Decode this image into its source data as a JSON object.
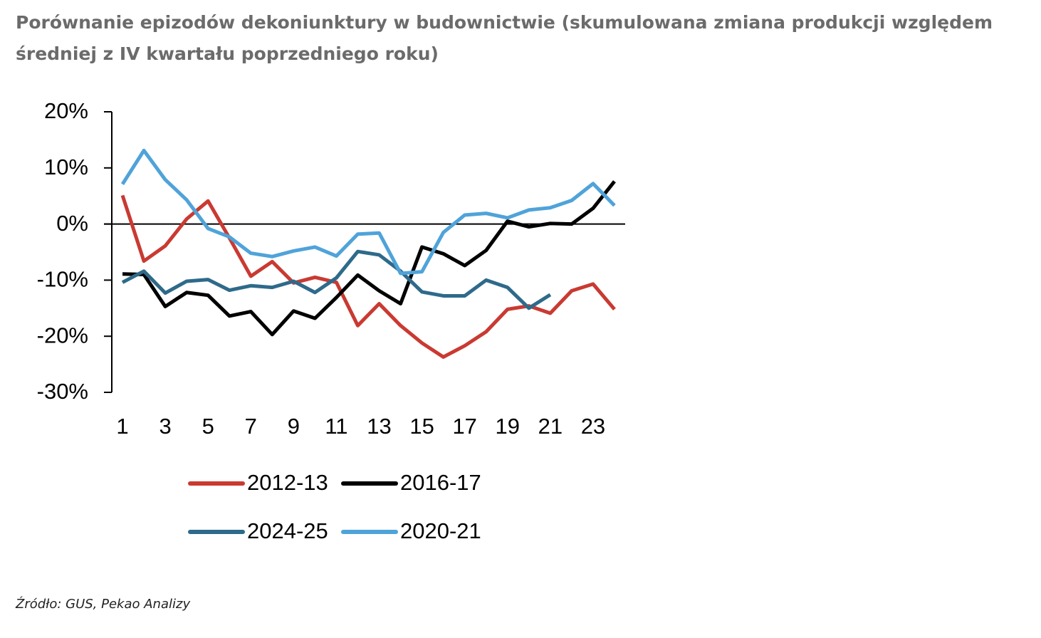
{
  "chart_data": {
    "type": "line",
    "title": "Porównanie epizodów dekoniunktury w budownictwie (skumulowana zmiana produkcji względem średniej z IV kwartału poprzedniego roku)",
    "source": "Źródło: GUS, Pekao Analizy",
    "x": [
      1,
      2,
      3,
      4,
      5,
      6,
      7,
      8,
      9,
      10,
      11,
      12,
      13,
      14,
      15,
      16,
      17,
      18,
      19,
      20,
      21,
      22,
      23,
      24
    ],
    "xlim": [
      0.5,
      24.5
    ],
    "xticks": [
      1,
      3,
      5,
      7,
      9,
      11,
      13,
      15,
      17,
      19,
      21,
      23
    ],
    "ylim": [
      -30,
      20
    ],
    "yticks": [
      {
        "value": 20,
        "label": "20%"
      },
      {
        "value": 10,
        "label": "10%"
      },
      {
        "value": 0,
        "label": "0%"
      },
      {
        "value": -10,
        "label": "-10%"
      },
      {
        "value": -20,
        "label": "-20%"
      },
      {
        "value": -30,
        "label": "-30%"
      }
    ],
    "series": [
      {
        "name": "2012-13",
        "color": "#c93a32",
        "values": [
          5.1,
          -6.6,
          -3.9,
          0.9,
          4.1,
          -2.5,
          -9.3,
          -6.7,
          -10.5,
          -9.5,
          -10.4,
          -18.1,
          -14.2,
          -18.1,
          -21.2,
          -23.7,
          -21.7,
          -19.2,
          -15.2,
          -14.6,
          -15.9,
          -11.9,
          -10.7,
          -15.2
        ]
      },
      {
        "name": "2016-17",
        "color": "#000000",
        "values": [
          -8.9,
          -9.0,
          -14.7,
          -12.2,
          -12.7,
          -16.4,
          -15.6,
          -19.7,
          -15.5,
          -16.8,
          -13.1,
          -9.1,
          -11.9,
          -14.2,
          -4.1,
          -5.3,
          -7.4,
          -4.7,
          0.5,
          -0.5,
          0.1,
          0,
          2.8,
          7.6
        ]
      },
      {
        "name": "2024-25",
        "color": "#2e6a8a",
        "values": [
          -10.4,
          -8.4,
          -12.3,
          -10.2,
          -9.9,
          -11.8,
          -11.0,
          -11.3,
          -10.2,
          -12.2,
          -9.6,
          -4.9,
          -5.5,
          -8.4,
          -12.1,
          -12.8,
          -12.8,
          -10.0,
          -11.3,
          -15.0,
          -12.6,
          null,
          null,
          null
        ]
      },
      {
        "name": "2020-21",
        "color": "#4fa3d9",
        "values": [
          7.1,
          13.1,
          7.9,
          4.3,
          -0.8,
          -2.3,
          -5.2,
          -5.8,
          -4.8,
          -4.1,
          -5.7,
          -1.8,
          -1.6,
          -8.8,
          -8.5,
          -1.5,
          1.6,
          1.9,
          1.1,
          2.5,
          2.9,
          4.2,
          7.2,
          3.3
        ]
      }
    ]
  }
}
